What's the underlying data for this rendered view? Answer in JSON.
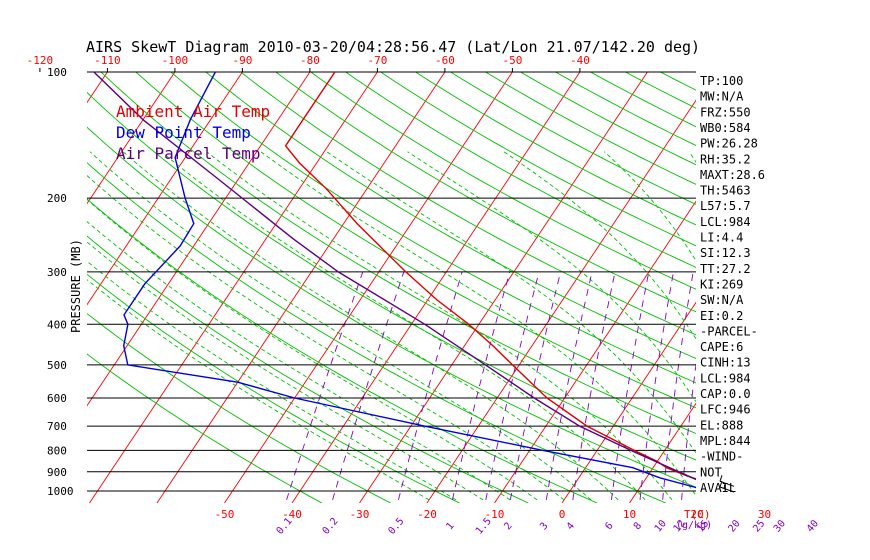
{
  "chart_data": {
    "type": "skewt",
    "title": "AIRS SkewT Diagram 2010-03-20/04:28:56.47 (Lat/Lon 21.07/142.20 deg)",
    "ylabel": "PRESSURE (MB)",
    "xlabel": "T(C)",
    "mixing_label": "(g/kg)",
    "pressure_ticks": [
      "100",
      "200",
      "300",
      "400",
      "500",
      "600",
      "700",
      "800",
      "900",
      "1000"
    ],
    "pressure_levels": [
      100,
      200,
      300,
      400,
      500,
      600,
      700,
      800,
      900,
      1000
    ],
    "top_temp_ticks": [
      "-120",
      "-110",
      "-100",
      "-90",
      "-80",
      "-70",
      "-60",
      "-50",
      "-40"
    ],
    "bottom_temp_ticks": [
      "-50",
      "-40",
      "-30",
      "-20",
      "-10",
      "0",
      "10",
      "20",
      "30"
    ],
    "mixing_ratio_ticks": [
      "0.1",
      "0.2",
      "0.5",
      "1",
      "1.5",
      "2",
      "3",
      "4",
      "6",
      "8",
      "10",
      "12",
      "15",
      "20",
      "25",
      "30",
      "40"
    ],
    "legend": [
      {
        "label": "Ambient Air Temp",
        "color": "#e00000"
      },
      {
        "label": "Dew Point Temp",
        "color": "#0000e0"
      },
      {
        "label": "Air Parcel Temp",
        "color": "#5a0080"
      }
    ],
    "series": [
      {
        "name": "Ambient Air Temp",
        "color": "#e00000",
        "points": [
          [
            100,
            -76.3
          ],
          [
            115,
            -76.3
          ],
          [
            130,
            -76.3
          ],
          [
            150,
            -76.3
          ],
          [
            165,
            -72.5
          ],
          [
            190,
            -66.0
          ],
          [
            230,
            -58.0
          ],
          [
            300,
            -46.0
          ],
          [
            350,
            -38.6
          ],
          [
            400,
            -31.5
          ],
          [
            450,
            -25.8
          ],
          [
            500,
            -21.0
          ],
          [
            600,
            -12.6
          ],
          [
            700,
            -3.9
          ],
          [
            800,
            5.5
          ],
          [
            850,
            10.0
          ],
          [
            880,
            12.0
          ],
          [
            920,
            15.8
          ],
          [
            970,
            21.0
          ],
          [
            1000,
            24.0
          ]
        ]
      },
      {
        "name": "Dew Point Temp",
        "color": "#0000e0",
        "points": [
          [
            100,
            -94.0
          ],
          [
            130,
            -93.0
          ],
          [
            160,
            -91.5
          ],
          [
            200,
            -86.0
          ],
          [
            230,
            -82.2
          ],
          [
            260,
            -82.0
          ],
          [
            320,
            -83.5
          ],
          [
            380,
            -83.5
          ],
          [
            400,
            -82.0
          ],
          [
            450,
            -80.5
          ],
          [
            500,
            -78.0
          ],
          [
            550,
            -60.0
          ],
          [
            600,
            -50.0
          ],
          [
            700,
            -28.0
          ],
          [
            800,
            -8.0
          ],
          [
            880,
            7.0
          ],
          [
            930,
            12.0
          ],
          [
            970,
            17.0
          ],
          [
            1000,
            20.5
          ]
        ]
      },
      {
        "name": "Air Parcel Temp",
        "color": "#5a0080",
        "points": [
          [
            100,
            -112.0
          ],
          [
            130,
            -100.0
          ],
          [
            180,
            -83.0
          ],
          [
            250,
            -66.0
          ],
          [
            300,
            -56.0
          ],
          [
            400,
            -38.0
          ],
          [
            500,
            -25.0
          ],
          [
            600,
            -14.5
          ],
          [
            700,
            -5.0
          ],
          [
            800,
            5.0
          ],
          [
            900,
            14.2
          ],
          [
            950,
            18.5
          ],
          [
            1000,
            22.0
          ]
        ]
      }
    ],
    "wind": [
      {
        "p": 948,
        "dir": 80,
        "speed": 10
      },
      {
        "p": 978,
        "dir": 90,
        "speed": 15
      }
    ],
    "indices": [
      "TP:100",
      "MW:N/A",
      "FRZ:550",
      "WB0:584",
      "PW:26.28",
      "RH:35.2",
      "MAXT:28.6",
      "TH:5463",
      "L57:5.7",
      "LCL:984",
      "LI:4.4",
      "SI:12.3",
      "TT:27.2",
      "KI:269",
      "SW:N/A",
      "EI:0.2",
      "-PARCEL-",
      "CAPE:6",
      "CINH:13",
      "LCL:984",
      "CAP:0.0",
      "LFC:946",
      "EL:888",
      "MPL:844",
      "-WIND-",
      "NOT",
      "AVAIL"
    ],
    "colors": {
      "isotherm": "#ff0000",
      "dry_adiabat": "#00c000",
      "moist_adiabat": "#00c000",
      "mixing_ratio": "#8000c0",
      "isobar": "#000000"
    }
  }
}
